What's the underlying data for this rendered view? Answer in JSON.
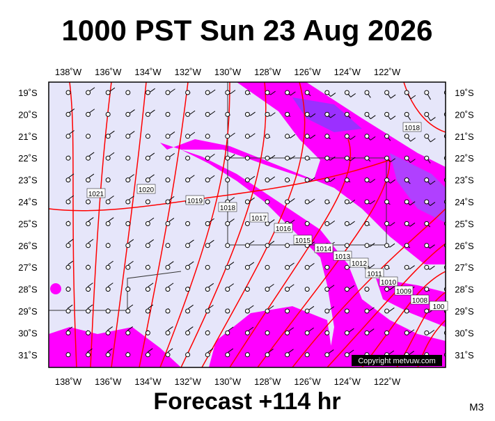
{
  "header": {
    "title": "1000 PST Sun 23 Aug 2026"
  },
  "map": {
    "lon_labels": [
      "138˚W",
      "136˚W",
      "134˚W",
      "132˚W",
      "130˚W",
      "128˚W",
      "126˚W",
      "124˚W",
      "122˚W"
    ],
    "lat_labels": [
      "19˚S",
      "20˚S",
      "21˚S",
      "22˚S",
      "23˚S",
      "24˚S",
      "25˚S",
      "26˚S",
      "27˚S",
      "28˚S",
      "29˚S",
      "30˚S",
      "31˚S"
    ],
    "isobar_labels": [
      "1018",
      "1021",
      "1020",
      "1019",
      "1018",
      "1017",
      "1016",
      "1015",
      "1014",
      "1013",
      "1012",
      "1011",
      "1010",
      "1009",
      "1008",
      "100"
    ],
    "copyright": "Copyright metvuw.com"
  },
  "footer": {
    "forecast": "Forecast +114 hr",
    "model": "M3"
  }
}
